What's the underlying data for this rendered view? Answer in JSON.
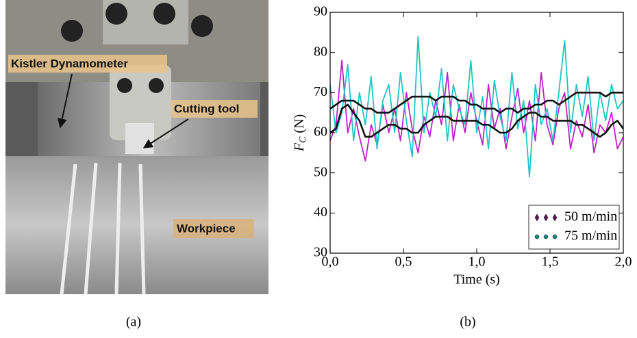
{
  "photo": {
    "labels": [
      "Kistler Dynamometer",
      "Cutting tool",
      "Workpiece"
    ],
    "caption": "(a)"
  },
  "chart_data": {
    "type": "line",
    "caption": "(b)",
    "xlabel": "Time (s)",
    "ylabel": {
      "main": "F",
      "sub": "C",
      "unit": "(N)"
    },
    "xlim": [
      0,
      2
    ],
    "ylim": [
      30,
      90
    ],
    "xticks": [
      {
        "value": 0,
        "label": "0,0"
      },
      {
        "value": 0.5,
        "label": "0,5"
      },
      {
        "value": 1,
        "label": "1,0"
      },
      {
        "value": 1.5,
        "label": "1,5"
      },
      {
        "value": 2,
        "label": "2,0"
      }
    ],
    "yticks": [
      30,
      40,
      50,
      60,
      70,
      80,
      90
    ],
    "legend": "lower right",
    "x": [
      0,
      0.04,
      0.08,
      0.12,
      0.16,
      0.2,
      0.24,
      0.28,
      0.32,
      0.36,
      0.4,
      0.44,
      0.48,
      0.52,
      0.56,
      0.6,
      0.64,
      0.68,
      0.72,
      0.76,
      0.8,
      0.84,
      0.88,
      0.92,
      0.96,
      1.0,
      1.04,
      1.08,
      1.12,
      1.16,
      1.2,
      1.24,
      1.28,
      1.32,
      1.36,
      1.4,
      1.44,
      1.48,
      1.52,
      1.56,
      1.6,
      1.64,
      1.68,
      1.72,
      1.76,
      1.8,
      1.84,
      1.88,
      1.92,
      1.96,
      2.0
    ],
    "series": [
      {
        "name": "50 m/min",
        "color": "#c020c8",
        "marker": "diamond",
        "marker_color": "#5a1a50",
        "values": [
          58,
          62,
          78,
          60,
          66,
          59,
          53,
          62,
          57,
          67,
          60,
          66,
          58,
          70,
          61,
          55,
          64,
          59,
          68,
          62,
          75,
          58,
          67,
          60,
          70,
          63,
          57,
          72,
          61,
          66,
          56,
          64,
          71,
          60,
          68,
          58,
          75,
          62,
          57,
          66,
          70,
          56,
          63,
          59,
          67,
          55,
          62,
          60,
          65,
          56,
          59
        ]
      },
      {
        "name": "75 m/min",
        "color": "#20c4c4",
        "marker": "circle",
        "marker_color": "#1a8a80",
        "values": [
          72,
          60,
          65,
          77,
          58,
          70,
          62,
          74,
          56,
          68,
          72,
          60,
          75,
          63,
          54,
          84,
          60,
          70,
          64,
          76,
          58,
          72,
          66,
          62,
          78,
          60,
          69,
          56,
          73,
          64,
          58,
          75,
          61,
          68,
          49,
          72,
          62,
          66,
          58,
          70,
          83,
          60,
          72,
          64,
          74,
          58,
          70,
          63,
          72,
          66,
          68
        ]
      },
      {
        "color": "#111111",
        "values": [
          66,
          67,
          68,
          68,
          68,
          67,
          66,
          66,
          65,
          65,
          65,
          66,
          67,
          68,
          69,
          69,
          69,
          69,
          68,
          69,
          69,
          69,
          68,
          68,
          67,
          67,
          66,
          66,
          66,
          65,
          66,
          66,
          65,
          66,
          66,
          67,
          67,
          68,
          68,
          67,
          68,
          69,
          70,
          70,
          70,
          70,
          70,
          69,
          70,
          70,
          70
        ]
      },
      {
        "color": "#111111",
        "values": [
          60,
          61,
          66,
          67,
          65,
          63,
          59,
          59,
          60,
          61,
          62,
          62,
          61,
          61,
          60,
          60,
          62,
          63,
          64,
          64,
          64,
          63,
          63,
          63,
          63,
          63,
          62,
          62,
          61,
          60,
          60,
          61,
          63,
          64,
          65,
          65,
          64,
          64,
          63,
          63,
          63,
          63,
          62,
          62,
          61,
          60,
          59,
          60,
          62,
          63,
          61
        ]
      }
    ]
  }
}
